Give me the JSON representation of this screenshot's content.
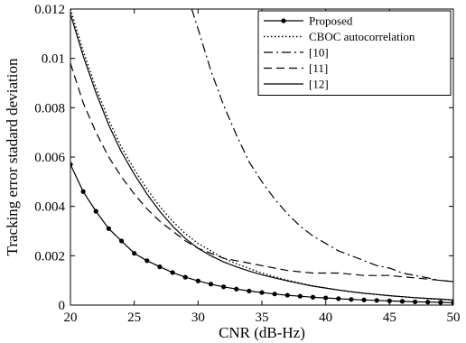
{
  "chart_data": {
    "type": "line",
    "title": "",
    "xlabel": "CNR (dB-Hz)",
    "ylabel": "Tracking error stadard deviation",
    "xlim": [
      20,
      50
    ],
    "ylim": [
      0,
      0.012
    ],
    "xticks": [
      20,
      25,
      30,
      35,
      40,
      45,
      50
    ],
    "xtick_labels": [
      "20",
      "25",
      "30",
      "35",
      "40",
      "45",
      "50"
    ],
    "yticks": [
      0,
      0.002,
      0.004,
      0.006,
      0.008,
      0.01,
      0.012
    ],
    "ytick_labels": [
      "0",
      "0.002",
      "0.004",
      "0.006",
      "0.008",
      "0.01",
      "0.012"
    ],
    "grid": false,
    "legend_position": "top-right",
    "series": [
      {
        "name": "Proposed",
        "style": "solid-markers",
        "color": "#000000",
        "x": [
          20,
          21,
          22,
          23,
          24,
          25,
          26,
          27,
          28,
          29,
          30,
          31,
          32,
          33,
          34,
          35,
          36,
          37,
          38,
          39,
          40,
          41,
          42,
          43,
          44,
          45,
          46,
          47,
          48,
          49,
          50
        ],
        "y": [
          0.0057,
          0.0046,
          0.0038,
          0.0031,
          0.0026,
          0.0021,
          0.0018,
          0.00155,
          0.00132,
          0.00113,
          0.00098,
          0.00085,
          0.00074,
          0.00065,
          0.00057,
          0.00051,
          0.00045,
          0.0004,
          0.00036,
          0.00032,
          0.00029,
          0.00026,
          0.00023,
          0.00021,
          0.00019,
          0.00017,
          0.00015,
          0.00013,
          0.00012,
          0.00011,
          0.0001
        ]
      },
      {
        "name": "CBOC autocorrelation",
        "style": "dotted",
        "color": "#000000",
        "x": [
          20,
          21,
          22,
          23,
          24,
          25,
          26,
          27,
          28,
          29,
          30,
          31,
          32,
          33,
          34,
          35,
          36,
          37,
          38,
          39,
          40,
          41,
          42,
          43,
          44,
          45,
          46,
          47,
          48,
          49,
          50
        ],
        "y": [
          0.012,
          0.0103,
          0.0088,
          0.0075,
          0.0064,
          0.0055,
          0.0047,
          0.004,
          0.0034,
          0.0029,
          0.0025,
          0.0022,
          0.0019,
          0.00168,
          0.00148,
          0.0013,
          0.00115,
          0.00101,
          0.00089,
          0.00078,
          0.00069,
          0.00061,
          0.00054,
          0.00048,
          0.00043,
          0.00038,
          0.00034,
          0.0003,
          0.00026,
          0.00023,
          0.0002
        ]
      },
      {
        "name": "[10]",
        "style": "dash-dot",
        "color": "#000000",
        "x": [
          29.5,
          30,
          31,
          32,
          33,
          34,
          35,
          36,
          37,
          38,
          39,
          40,
          41,
          42,
          43,
          44,
          45,
          46,
          47,
          48,
          49,
          50
        ],
        "y": [
          0.012,
          0.0112,
          0.0095,
          0.0081,
          0.0069,
          0.0058,
          0.005,
          0.0043,
          0.0037,
          0.0032,
          0.0028,
          0.0025,
          0.0022,
          0.002,
          0.0018,
          0.0016,
          0.0015,
          0.0013,
          0.0012,
          0.0011,
          0.001,
          0.00095
        ]
      },
      {
        "name": "[11]",
        "style": "dashed",
        "color": "#000000",
        "x": [
          20,
          21,
          22,
          23,
          24,
          25,
          26,
          27,
          28,
          29,
          30,
          31,
          32,
          33,
          34,
          35,
          36,
          37,
          38,
          39,
          40,
          41,
          42,
          43,
          44,
          45,
          46,
          47,
          48,
          49,
          50
        ],
        "y": [
          0.0098,
          0.0082,
          0.007,
          0.006,
          0.0052,
          0.0045,
          0.0039,
          0.0034,
          0.003,
          0.0026,
          0.0023,
          0.0021,
          0.0019,
          0.0018,
          0.0017,
          0.0016,
          0.0015,
          0.0014,
          0.00135,
          0.0013,
          0.0013,
          0.0013,
          0.00125,
          0.0012,
          0.0012,
          0.0012,
          0.00115,
          0.0011,
          0.00105,
          0.001,
          0.00095
        ]
      },
      {
        "name": "[12]",
        "style": "solid",
        "color": "#000000",
        "x": [
          20,
          21,
          22,
          23,
          24,
          25,
          26,
          27,
          28,
          29,
          30,
          31,
          32,
          33,
          34,
          35,
          36,
          37,
          38,
          39,
          40,
          41,
          42,
          43,
          44,
          45,
          46,
          47,
          48,
          49,
          50
        ],
        "y": [
          0.0118,
          0.0101,
          0.0086,
          0.0073,
          0.0062,
          0.0053,
          0.0045,
          0.0038,
          0.0032,
          0.0027,
          0.0023,
          0.002,
          0.00175,
          0.00155,
          0.00138,
          0.00123,
          0.0011,
          0.00098,
          0.00087,
          0.00077,
          0.00069,
          0.00061,
          0.00054,
          0.00048,
          0.00043,
          0.00038,
          0.00034,
          0.0003,
          0.00027,
          0.00024,
          0.00021
        ]
      }
    ]
  }
}
